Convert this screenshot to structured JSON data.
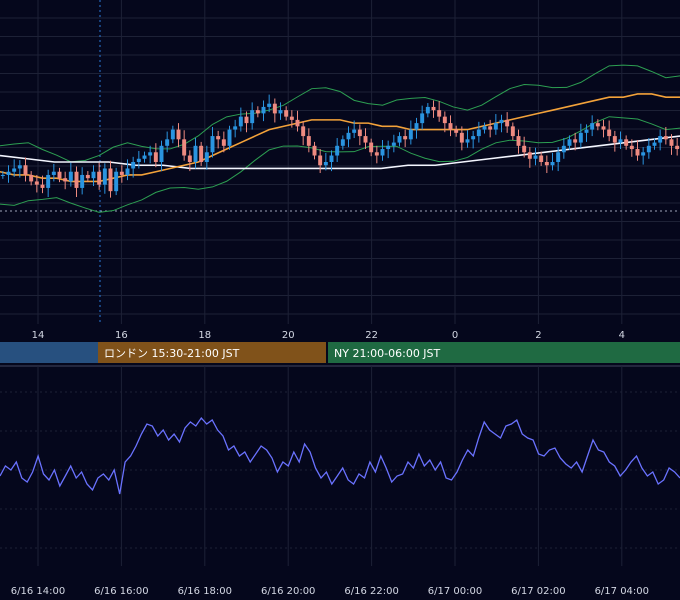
{
  "chart_data": [
    {
      "type": "candlestick",
      "title": "",
      "x_ticks": [
        "14",
        "16",
        "18",
        "20",
        "22",
        "0",
        "2",
        "4"
      ],
      "y_range": [
        0,
        100
      ],
      "grid": true,
      "series": [
        {
          "values": [
            46,
            47,
            48,
            49,
            46,
            44,
            43,
            42,
            46,
            47,
            45,
            44,
            47,
            42,
            46,
            45,
            47,
            43,
            48,
            41,
            47,
            46,
            48,
            50,
            51,
            52,
            53,
            50,
            55,
            57,
            60,
            57,
            52,
            50,
            55,
            50,
            53,
            58,
            57,
            55,
            60,
            61,
            64,
            62,
            66,
            65,
            67,
            68,
            65,
            66,
            64,
            63,
            61,
            58,
            55,
            52,
            49,
            50,
            52,
            55,
            57,
            59,
            60,
            58,
            56,
            53,
            52,
            54,
            55,
            56,
            58,
            57,
            60,
            62,
            65,
            67,
            66,
            64,
            62,
            60,
            59,
            56,
            57,
            58,
            60,
            61,
            60,
            62,
            63,
            61,
            58,
            55,
            53,
            51,
            52,
            50,
            49,
            50,
            53,
            55,
            57,
            56,
            59,
            60,
            62,
            61,
            60,
            58,
            56,
            57,
            55,
            54,
            52,
            53,
            55,
            56,
            58,
            57,
            55,
            54
          ]
        },
        {
          "name": "",
          "values": [
            47,
            46,
            46,
            45,
            45,
            44,
            44,
            44,
            45,
            46,
            46,
            47,
            48,
            49,
            50,
            52,
            54,
            56,
            58,
            60,
            61,
            62,
            63,
            63,
            63,
            62,
            62,
            61,
            61,
            60,
            60,
            60,
            60,
            60,
            61,
            62,
            63,
            64,
            65,
            66,
            67,
            68,
            69,
            70,
            70,
            71,
            71,
            70,
            70
          ]
        },
        {
          "name": "",
          "values": [
            52,
            51,
            50,
            50,
            50,
            49,
            49,
            48,
            48,
            48,
            48,
            48,
            48,
            48,
            48,
            49,
            49,
            50,
            51,
            52,
            53,
            54,
            55,
            56,
            57,
            58
          ]
        }
      ],
      "bands": {
        "upper_offset": 8,
        "lower_offset": 8
      }
    },
    {
      "type": "line",
      "title": "",
      "x_ticks": [
        "6/16 14:00",
        "6/16 16:00",
        "6/16 18:00",
        "6/16 20:00",
        "6/16 22:00",
        "6/17 00:00",
        "6/17 02:00",
        "6/17 04:00"
      ],
      "series": [
        {
          "name": "",
          "values": [
            45,
            50,
            48,
            52,
            44,
            42,
            47,
            55,
            46,
            43,
            48,
            40,
            45,
            50,
            44,
            47,
            41,
            38,
            44,
            46,
            43,
            48,
            36,
            52,
            55,
            60,
            66,
            71,
            70,
            65,
            68,
            63,
            66,
            62,
            69,
            72,
            70,
            74,
            71,
            73,
            68,
            65,
            58,
            60,
            55,
            57,
            52,
            56,
            60,
            58,
            54,
            47,
            52,
            50,
            57,
            52,
            61,
            57,
            49,
            44,
            47,
            41,
            45,
            49,
            43,
            41,
            46,
            44,
            52,
            47,
            55,
            49,
            42,
            45,
            46,
            52,
            49,
            56,
            50,
            53,
            48,
            52,
            44,
            43,
            47,
            53,
            58,
            55,
            64,
            72,
            68,
            66,
            64,
            70,
            71,
            73,
            66,
            64,
            63,
            56,
            55,
            58,
            59,
            54,
            51,
            49,
            52,
            47,
            55,
            63,
            58,
            57,
            52,
            50,
            45,
            48,
            52,
            55,
            49,
            45,
            47,
            41,
            43,
            49,
            47,
            44
          ]
        }
      ]
    }
  ],
  "sessions": [
    {
      "label": "",
      "color": "#27507f"
    },
    {
      "label": "ロンドン 15:30-21:00 JST",
      "color": "#80521a"
    },
    {
      "label": "NY 21:00-06:00 JST",
      "color": "#1f6a42"
    }
  ],
  "colors": {
    "bg": "#05071c",
    "grid": "#1d2136",
    "up": "#2a94e0",
    "down": "#ee8a80",
    "sma_fast": "#f3a23a",
    "sma_slow": "#f4f6ff",
    "band": "#2d9f52",
    "rsi": "#6a72ff"
  }
}
